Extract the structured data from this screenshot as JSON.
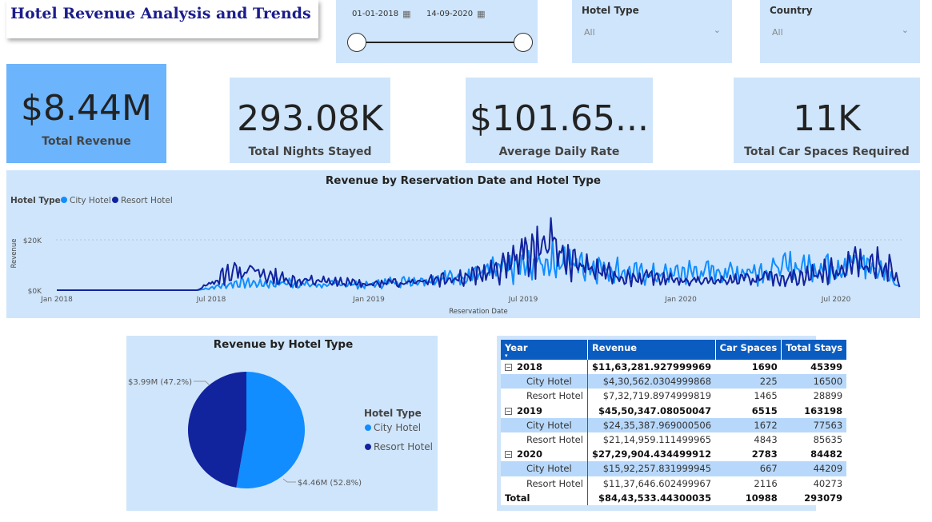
{
  "header": {
    "title": "Hotel Revenue Analysis and Trends"
  },
  "date_slicer": {
    "start": "01-01-2018",
    "end": "14-09-2020"
  },
  "filters": [
    {
      "label": "Hotel Type",
      "value": "All"
    },
    {
      "label": "Country",
      "value": "All"
    }
  ],
  "kpis": [
    {
      "value": "$8.44M",
      "label": "Total Revenue"
    },
    {
      "value": "293.08K",
      "label": "Total Nights Stayed"
    },
    {
      "value": "$101.65...",
      "label": "Average Daily Rate"
    },
    {
      "value": "11K",
      "label": "Total Car Spaces Required"
    }
  ],
  "line_chart": {
    "title": "Revenue by Reservation Date and Hotel Type",
    "legend_title": "Hotel Type",
    "series_names": [
      "City Hotel",
      "Resort Hotel"
    ],
    "ylabel": "Revenue",
    "xlabel": "Reservation Date",
    "yticks": [
      "$0K",
      "$20K"
    ],
    "xticks": [
      "Jan 2018",
      "Jul 2018",
      "Jan 2019",
      "Jul 2019",
      "Jan 2020",
      "Jul 2020"
    ]
  },
  "pie_chart": {
    "title": "Revenue by Hotel Type",
    "legend_title": "Hotel Type",
    "slices": [
      {
        "name": "City Hotel",
        "value": 4.46,
        "label": "$4.46M (52.8%)",
        "color": "#118dff"
      },
      {
        "name": "Resort Hotel",
        "value": 3.99,
        "label": "$3.99M (47.2%)",
        "color": "#12239e"
      }
    ]
  },
  "table": {
    "headers": [
      "Year",
      "Revenue",
      "Car Spaces",
      "Total Stays"
    ],
    "rows": [
      {
        "kind": "year",
        "name": "2018",
        "revenue": "$11,63,281.927999969",
        "car": "1690",
        "stays": "45399"
      },
      {
        "kind": "sub",
        "name": "City Hotel",
        "revenue": "$4,30,562.0304999868",
        "car": "225",
        "stays": "16500"
      },
      {
        "kind": "sub",
        "name": "Resort Hotel",
        "revenue": "$7,32,719.8974999819",
        "car": "1465",
        "stays": "28899"
      },
      {
        "kind": "year",
        "name": "2019",
        "revenue": "$45,50,347.08050047",
        "car": "6515",
        "stays": "163198"
      },
      {
        "kind": "sub",
        "name": "City Hotel",
        "revenue": "$24,35,387.969000506",
        "car": "1672",
        "stays": "77563"
      },
      {
        "kind": "sub",
        "name": "Resort Hotel",
        "revenue": "$21,14,959.111499965",
        "car": "4843",
        "stays": "85635"
      },
      {
        "kind": "year",
        "name": "2020",
        "revenue": "$27,29,904.434499912",
        "car": "2783",
        "stays": "84482"
      },
      {
        "kind": "sub",
        "name": "City Hotel",
        "revenue": "$15,92,257.831999945",
        "car": "667",
        "stays": "44209"
      },
      {
        "kind": "sub",
        "name": "Resort Hotel",
        "revenue": "$11,37,646.602499967",
        "car": "2116",
        "stays": "40273"
      },
      {
        "kind": "total",
        "name": "Total",
        "revenue": "$84,43,533.44300035",
        "car": "10988",
        "stays": "293079"
      }
    ]
  },
  "colors": {
    "city": "#118dff",
    "resort": "#12239e",
    "panel": "#cfe5fb",
    "kpi_highlight": "#6cb4fb"
  },
  "chart_data": [
    {
      "type": "line",
      "title": "Revenue by Reservation Date and Hotel Type",
      "xlabel": "Reservation Date",
      "ylabel": "Revenue",
      "ylim": [
        0,
        25000
      ],
      "x_range": [
        "2018-01-01",
        "2020-09-14"
      ],
      "series": [
        {
          "name": "City Hotel",
          "points": [
            [
              "2018-01-01",
              0
            ],
            [
              "2018-06-15",
              0
            ],
            [
              "2018-07-01",
              1000
            ],
            [
              "2018-08-01",
              3000
            ],
            [
              "2018-09-01",
              2500
            ],
            [
              "2018-10-01",
              3000
            ],
            [
              "2018-11-01",
              2000
            ],
            [
              "2018-12-01",
              2500
            ],
            [
              "2019-01-01",
              2000
            ],
            [
              "2019-02-01",
              3500
            ],
            [
              "2019-03-01",
              4000
            ],
            [
              "2019-04-01",
              5000
            ],
            [
              "2019-05-01",
              6000
            ],
            [
              "2019-06-01",
              8000
            ],
            [
              "2019-07-01",
              9000
            ],
            [
              "2019-08-01",
              12000
            ],
            [
              "2019-09-01",
              11000
            ],
            [
              "2019-10-01",
              9000
            ],
            [
              "2019-11-01",
              7000
            ],
            [
              "2019-12-01",
              6000
            ],
            [
              "2020-01-01",
              7000
            ],
            [
              "2020-02-01",
              7500
            ],
            [
              "2020-03-01",
              7000
            ],
            [
              "2020-04-01",
              8000
            ],
            [
              "2020-05-01",
              9000
            ],
            [
              "2020-06-01",
              9500
            ],
            [
              "2020-07-01",
              10000
            ],
            [
              "2020-08-01",
              11000
            ],
            [
              "2020-09-01",
              6000
            ],
            [
              "2020-09-14",
              1000
            ]
          ]
        },
        {
          "name": "Resort Hotel",
          "points": [
            [
              "2018-01-01",
              0
            ],
            [
              "2018-06-15",
              0
            ],
            [
              "2018-07-01",
              3000
            ],
            [
              "2018-08-01",
              9000
            ],
            [
              "2018-09-01",
              6000
            ],
            [
              "2018-10-01",
              4000
            ],
            [
              "2018-11-01",
              3500
            ],
            [
              "2018-12-01",
              3000
            ],
            [
              "2019-01-01",
              2500
            ],
            [
              "2019-02-01",
              3000
            ],
            [
              "2019-03-01",
              4000
            ],
            [
              "2019-04-01",
              5000
            ],
            [
              "2019-05-01",
              5500
            ],
            [
              "2019-06-01",
              8000
            ],
            [
              "2019-07-01",
              15000
            ],
            [
              "2019-08-01",
              18000
            ],
            [
              "2019-09-01",
              10000
            ],
            [
              "2019-10-01",
              7000
            ],
            [
              "2019-11-01",
              5000
            ],
            [
              "2019-12-01",
              5000
            ],
            [
              "2020-01-01",
              4000
            ],
            [
              "2020-02-01",
              3500
            ],
            [
              "2020-03-01",
              4000
            ],
            [
              "2020-04-01",
              4500
            ],
            [
              "2020-05-01",
              5000
            ],
            [
              "2020-06-01",
              6000
            ],
            [
              "2020-07-01",
              8000
            ],
            [
              "2020-08-01",
              12000
            ],
            [
              "2020-09-01",
              9000
            ],
            [
              "2020-09-14",
              1000
            ]
          ]
        }
      ]
    },
    {
      "type": "pie",
      "title": "Revenue by Hotel Type",
      "categories": [
        "City Hotel",
        "Resort Hotel"
      ],
      "values": [
        4.46,
        3.99
      ],
      "unit": "$M",
      "percent": [
        52.8,
        47.2
      ]
    }
  ]
}
